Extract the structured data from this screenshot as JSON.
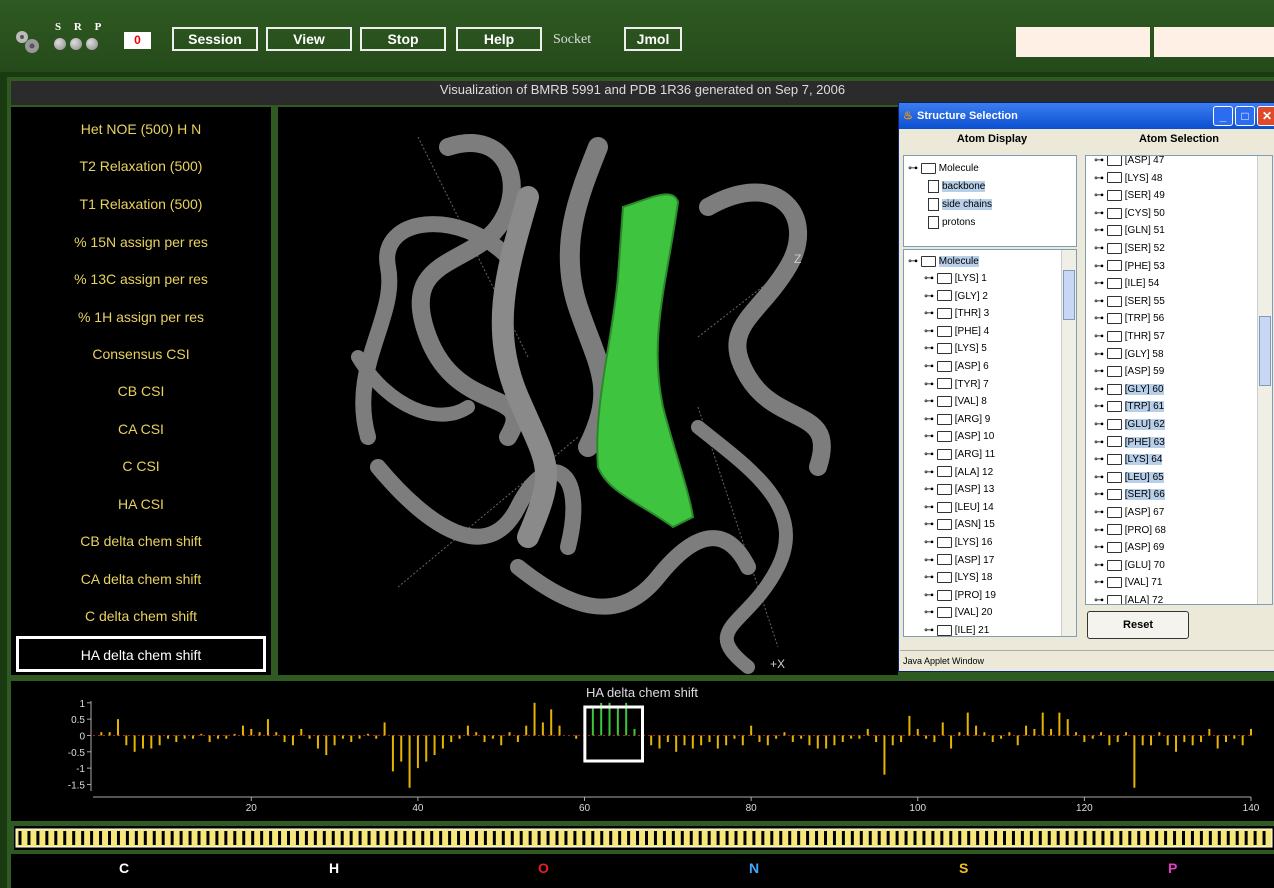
{
  "toolbar": {
    "srp": [
      "S",
      "R",
      "P"
    ],
    "counter": "0",
    "session": "Session",
    "view": "View",
    "stop": "Stop",
    "help": "Help",
    "socket": "Socket",
    "jmol": "Jmol"
  },
  "title": "Visualization of BMRB 5991 and PDB 1R36 generated on Sep 7, 2006",
  "menu": [
    "Het NOE (500) H N",
    "T2 Relaxation (500)",
    "T1 Relaxation (500)",
    "% 15N assign per res",
    "% 13C assign per res",
    "% 1H assign per res",
    "Consensus CSI",
    "CB CSI",
    "CA CSI",
    "C CSI",
    "HA CSI",
    "CB delta chem shift",
    "CA delta chem shift",
    "C delta chem shift",
    "HA delta chem shift"
  ],
  "menu_selected": "HA delta chem shift",
  "viewer": {
    "axis_z": "Z",
    "axis_x": "+X"
  },
  "applet": {
    "title": "Structure Selection",
    "atom_display_header": "Atom Display",
    "atom_selection_header": "Atom Selection",
    "display_tree": {
      "root": "Molecule",
      "children": [
        {
          "label": "backbone",
          "selected": true
        },
        {
          "label": "side chains",
          "selected": true
        },
        {
          "label": "protons",
          "selected": false
        }
      ]
    },
    "residue_tree_root": "Molecule",
    "residues_left": [
      "[LYS] 1",
      "[GLY] 2",
      "[THR] 3",
      "[PHE] 4",
      "[LYS] 5",
      "[ASP] 6",
      "[TYR] 7",
      "[VAL] 8",
      "[ARG] 9",
      "[ASP] 10",
      "[ARG] 11",
      "[ALA] 12",
      "[ASP] 13",
      "[LEU] 14",
      "[ASN] 15",
      "[LYS] 16",
      "[ASP] 17",
      "[LYS] 18",
      "[PRO] 19",
      "[VAL] 20",
      "[ILE] 21"
    ],
    "residues_right": [
      {
        "label": "[ASP] 47",
        "selected": false
      },
      {
        "label": "[LYS] 48",
        "selected": false
      },
      {
        "label": "[SER] 49",
        "selected": false
      },
      {
        "label": "[CYS] 50",
        "selected": false
      },
      {
        "label": "[GLN] 51",
        "selected": false
      },
      {
        "label": "[SER] 52",
        "selected": false
      },
      {
        "label": "[PHE] 53",
        "selected": false
      },
      {
        "label": "[ILE] 54",
        "selected": false
      },
      {
        "label": "[SER] 55",
        "selected": false
      },
      {
        "label": "[TRP] 56",
        "selected": false
      },
      {
        "label": "[THR] 57",
        "selected": false
      },
      {
        "label": "[GLY] 58",
        "selected": false
      },
      {
        "label": "[ASP] 59",
        "selected": false
      },
      {
        "label": "[GLY] 60",
        "selected": true
      },
      {
        "label": "[TRP] 61",
        "selected": true
      },
      {
        "label": "[GLU] 62",
        "selected": true
      },
      {
        "label": "[PHE] 63",
        "selected": true
      },
      {
        "label": "[LYS] 64",
        "selected": true
      },
      {
        "label": "[LEU] 65",
        "selected": true
      },
      {
        "label": "[SER] 66",
        "selected": true
      },
      {
        "label": "[ASP] 67",
        "selected": false
      },
      {
        "label": "[PRO] 68",
        "selected": false
      },
      {
        "label": "[ASP] 69",
        "selected": false
      },
      {
        "label": "[GLU] 70",
        "selected": false
      },
      {
        "label": "[VAL] 71",
        "selected": false
      },
      {
        "label": "[ALA] 72",
        "selected": false
      }
    ],
    "reset": "Reset",
    "status": "Java Applet Window"
  },
  "chart_data": {
    "type": "bar",
    "title": "HA delta chem shift",
    "xlim": [
      1,
      140
    ],
    "ylim": [
      -1.7,
      1.3
    ],
    "xticks": [
      "20",
      "40",
      "60",
      "80",
      "100",
      "120",
      "140"
    ],
    "yticks": [
      "1",
      "0.5",
      "0",
      "-0.5",
      "-1",
      "-1.5"
    ],
    "highlight_range": [
      61,
      66
    ],
    "highlight_color": "#3c9c3c",
    "bar_color": "#e6b400",
    "x": [
      2,
      3,
      4,
      5,
      6,
      7,
      8,
      9,
      10,
      11,
      12,
      13,
      14,
      15,
      16,
      17,
      18,
      19,
      20,
      21,
      22,
      23,
      24,
      25,
      26,
      27,
      28,
      29,
      30,
      31,
      32,
      33,
      34,
      35,
      36,
      37,
      38,
      39,
      40,
      41,
      42,
      43,
      44,
      45,
      46,
      47,
      48,
      49,
      50,
      51,
      52,
      53,
      54,
      55,
      56,
      57,
      58,
      59,
      60,
      61,
      62,
      63,
      64,
      65,
      66,
      67,
      68,
      69,
      70,
      71,
      72,
      73,
      74,
      75,
      76,
      77,
      78,
      79,
      80,
      81,
      82,
      83,
      84,
      85,
      86,
      87,
      88,
      89,
      90,
      91,
      92,
      93,
      94,
      95,
      96,
      97,
      98,
      99,
      100,
      101,
      102,
      103,
      104,
      105,
      106,
      107,
      108,
      109,
      110,
      111,
      112,
      113,
      114,
      115,
      116,
      117,
      118,
      119,
      120,
      121,
      122,
      123,
      124,
      125,
      126,
      127,
      128,
      129,
      130,
      131,
      132,
      133,
      134,
      135,
      136,
      137,
      138,
      139,
      140
    ],
    "values": [
      0.1,
      0.1,
      0.5,
      -0.3,
      -0.5,
      -0.4,
      -0.4,
      -0.3,
      -0.1,
      -0.2,
      -0.1,
      -0.1,
      0.05,
      -0.2,
      -0.1,
      -0.1,
      0.05,
      0.3,
      0.2,
      0.1,
      0.5,
      0.1,
      -0.2,
      -0.3,
      0.2,
      -0.1,
      -0.4,
      -0.6,
      -0.3,
      -0.1,
      -0.2,
      -0.1,
      0.05,
      -0.1,
      0.4,
      -1.1,
      -0.8,
      -1.6,
      -1.0,
      -0.8,
      -0.6,
      -0.4,
      -0.2,
      -0.1,
      0.3,
      0.1,
      -0.2,
      -0.1,
      -0.3,
      0.1,
      -0.2,
      0.3,
      1.0,
      0.4,
      0.8,
      0.3,
      0.0,
      -0.1,
      -0.5,
      0.9,
      1.0,
      1.0,
      0.9,
      1.0,
      0.2,
      0.1,
      -0.3,
      -0.4,
      -0.2,
      -0.5,
      -0.3,
      -0.4,
      -0.3,
      -0.2,
      -0.4,
      -0.3,
      -0.1,
      -0.3,
      0.3,
      -0.2,
      -0.3,
      -0.1,
      0.1,
      -0.2,
      -0.1,
      -0.3,
      -0.4,
      -0.4,
      -0.3,
      -0.2,
      -0.1,
      -0.1,
      0.2,
      -0.2,
      -1.2,
      -0.3,
      -0.2,
      0.6,
      0.2,
      -0.1,
      -0.2,
      0.4,
      -0.4,
      0.1,
      0.7,
      0.3,
      0.1,
      -0.2,
      -0.1,
      0.1,
      -0.3,
      0.3,
      0.2,
      0.7,
      0.2,
      0.7,
      0.5,
      0.1,
      -0.2,
      -0.1,
      0.1,
      -0.3,
      -0.2,
      0.1,
      -1.6,
      -0.3,
      -0.3,
      0.1,
      -0.3,
      -0.5,
      -0.2,
      -0.3,
      -0.2,
      0.2,
      -0.4,
      -0.2,
      -0.1,
      -0.3,
      0.2
    ]
  },
  "elements": [
    {
      "symbol": "C",
      "color": "#ffffff"
    },
    {
      "symbol": "H",
      "color": "#ffffff"
    },
    {
      "symbol": "O",
      "color": "#e62020"
    },
    {
      "symbol": "N",
      "color": "#40a8ff"
    },
    {
      "symbol": "S",
      "color": "#f0c020"
    },
    {
      "symbol": "P",
      "color": "#e040c0"
    }
  ]
}
